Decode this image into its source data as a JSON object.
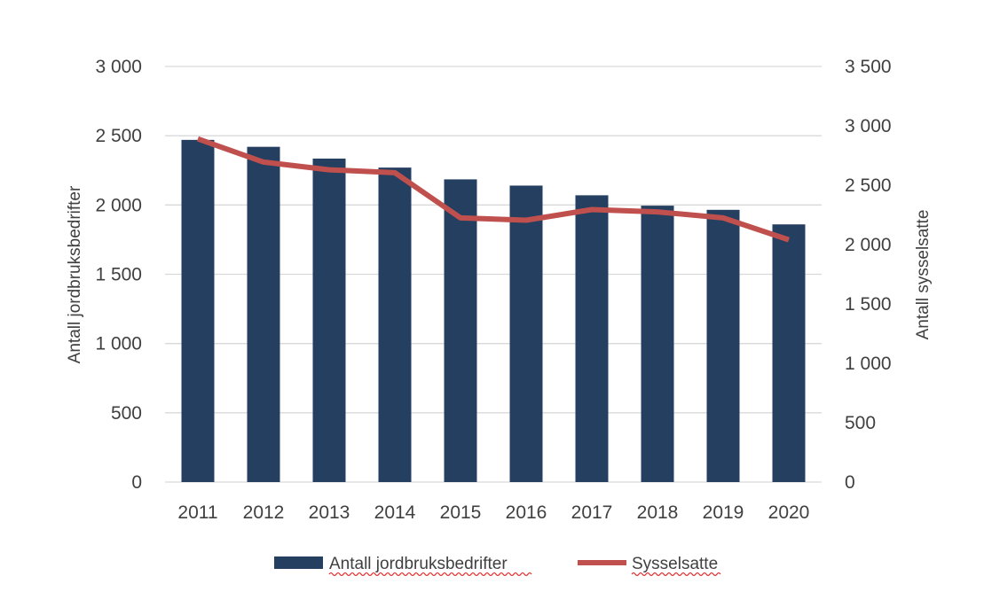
{
  "chart_data": {
    "type": "bar",
    "categories": [
      "2011",
      "2012",
      "2013",
      "2014",
      "2015",
      "2016",
      "2017",
      "2018",
      "2019",
      "2020"
    ],
    "series": [
      {
        "name": "Antall jordbruksbedrifter",
        "type": "bar",
        "axis": "left",
        "color": "#243f60",
        "values": [
          2470,
          2420,
          2335,
          2270,
          2185,
          2140,
          2070,
          1995,
          1965,
          1860
        ]
      },
      {
        "name": "Sysselsatte",
        "type": "line",
        "axis": "right",
        "color": "#c0504d",
        "values": [
          2890,
          2695,
          2630,
          2605,
          2225,
          2205,
          2295,
          2275,
          2225,
          2040
        ]
      }
    ],
    "left_axis": {
      "label": "Antall jordbruksbedrifter",
      "ylim": [
        0,
        3000
      ],
      "ticks": [
        0,
        500,
        1000,
        1500,
        2000,
        2500,
        3000
      ],
      "tick_labels": [
        "0",
        "500",
        "1 000",
        "1 500",
        "2 000",
        "2 500",
        "3 000"
      ]
    },
    "right_axis": {
      "label": "Antall sysselsatte",
      "ylim": [
        0,
        3500
      ],
      "ticks": [
        0,
        500,
        1000,
        1500,
        2000,
        2500,
        3000,
        3500
      ],
      "tick_labels": [
        "0",
        "500",
        "1 000",
        "1 500",
        "2 000",
        "2 500",
        "3 000",
        "3 500"
      ]
    },
    "grid": true,
    "legend_position": "bottom"
  }
}
